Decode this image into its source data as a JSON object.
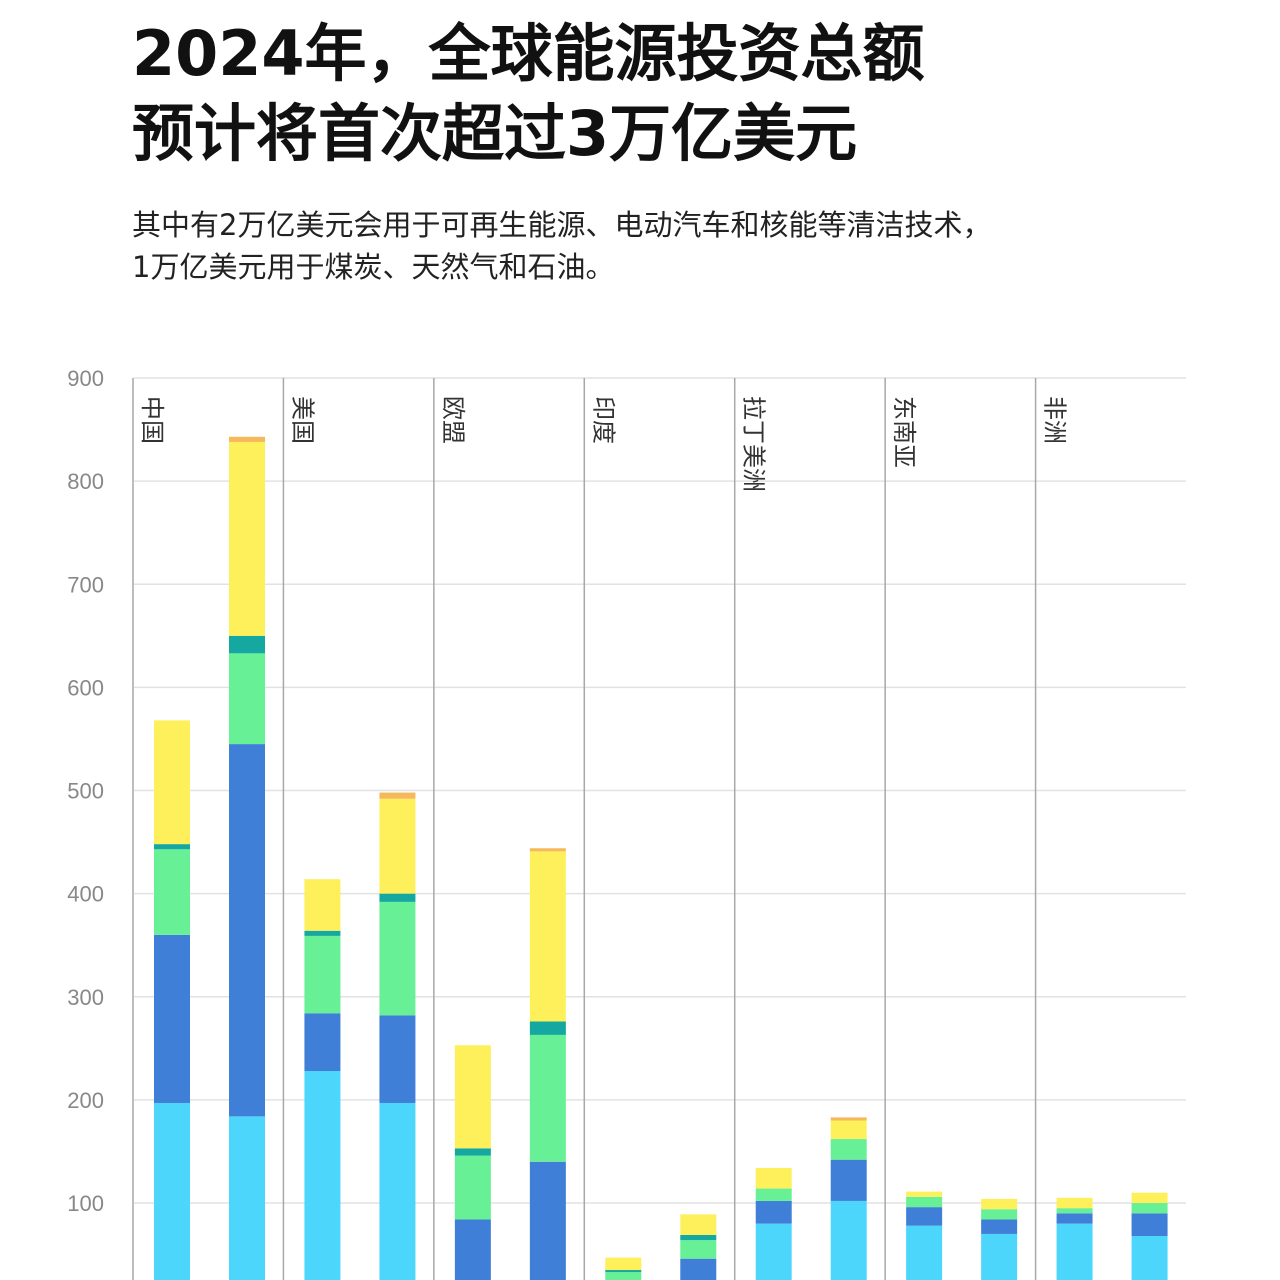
{
  "title": {
    "line1": "2024年，全球能源投资总额",
    "line2": "预计将首次超过3万亿美元"
  },
  "subtitle": {
    "line1": "其中有2万亿美元会用于可再生能源、电动汽车和核能等清洁技术，",
    "line2": "1万亿美元用于煤炭、天然气和石油。"
  },
  "chart_data": {
    "type": "bar",
    "stacked": true,
    "ylim": [
      0,
      900
    ],
    "yticks": [
      100,
      200,
      300,
      400,
      500,
      600,
      700,
      800,
      900
    ],
    "grid": true,
    "groups": [
      "中国",
      "美国",
      "欧盟",
      "印度",
      "拉丁美洲",
      "东南亚",
      "非洲"
    ],
    "bars_per_group": 2,
    "series_colors": [
      "#4dd6fc",
      "#3f7fd8",
      "#68f096",
      "#14a8a0",
      "#fdf05a",
      "#f5b85a"
    ],
    "stacks": [
      [
        [
          197,
          163,
          83,
          5,
          120,
          0
        ],
        [
          184,
          361,
          88,
          17,
          188,
          5
        ]
      ],
      [
        [
          228,
          56,
          75,
          5,
          50,
          0
        ],
        [
          197,
          85,
          110,
          8,
          92,
          6
        ]
      ],
      [
        [
          2,
          82,
          62,
          7,
          100,
          0
        ],
        [
          10,
          130,
          123,
          13,
          165,
          3
        ]
      ],
      [
        [
          5,
          10,
          18,
          2,
          12,
          0
        ],
        [
          10,
          36,
          18,
          5,
          20,
          0
        ]
      ],
      [
        [
          80,
          22,
          12,
          0,
          20,
          0
        ],
        [
          102,
          40,
          20,
          0,
          18,
          3
        ]
      ],
      [
        [
          78,
          18,
          10,
          0,
          5,
          0
        ],
        [
          70,
          14,
          10,
          0,
          10,
          0
        ]
      ],
      [
        [
          80,
          10,
          5,
          0,
          10,
          0
        ],
        [
          68,
          22,
          10,
          0,
          10,
          0
        ]
      ]
    ]
  }
}
